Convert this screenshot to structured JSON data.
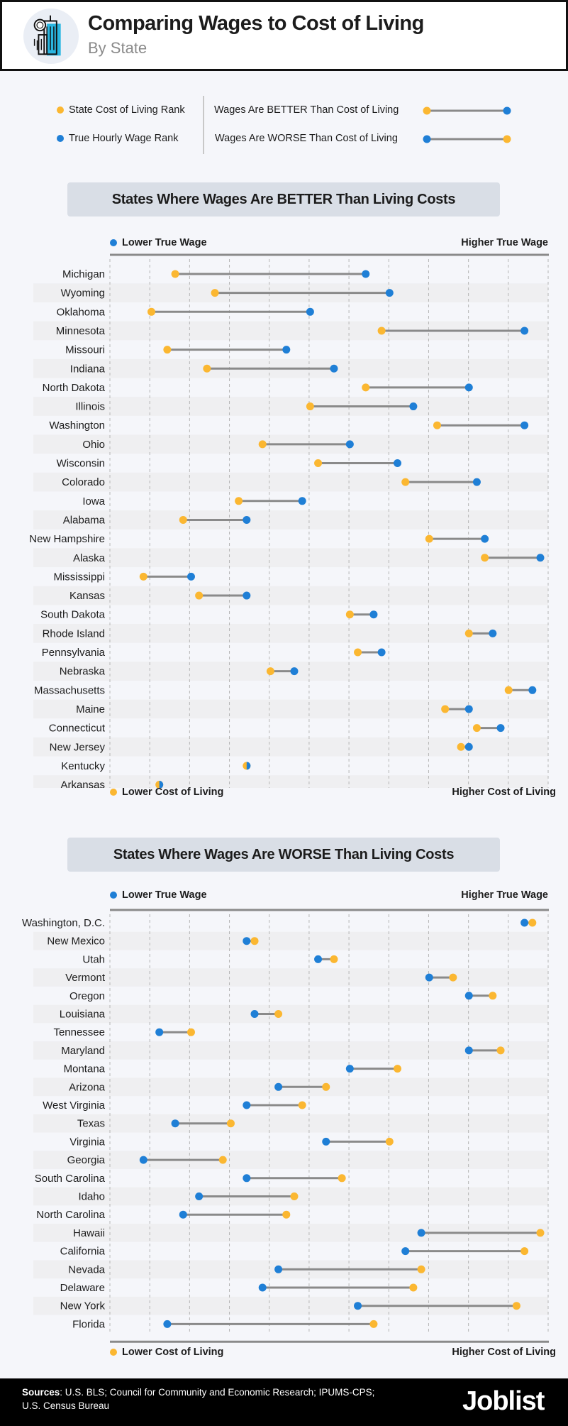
{
  "header": {
    "title": "Comparing Wages to Cost of Living",
    "subtitle": "By State",
    "icon": "city-buildings-coin-icon"
  },
  "legend": {
    "cost_rank": "State Cost of Living Rank",
    "wage_rank": "True Hourly Wage Rank",
    "better": "Wages Are BETTER Than Cost of Living",
    "worse": "Wages Are WORSE Than Cost of Living"
  },
  "colors": {
    "cost": "#fbb731",
    "wage": "#1f7fd6",
    "connector": "#8a8a8a",
    "band": "#efeff1"
  },
  "axis_labels": {
    "lower_wage": "Lower True Wage",
    "higher_wage": "Higher True Wage",
    "lower_cost": "Lower Cost of Living",
    "higher_cost": "Higher Cost of Living"
  },
  "chart_data": [
    {
      "type": "scatter",
      "style": "dumbbell",
      "title": "States Where Wages Are BETTER Than Living Costs",
      "xlabel_top": [
        "Lower True Wage",
        "Higher True Wage"
      ],
      "xlabel_bottom": [
        "Lower Cost of Living",
        "Higher Cost of Living"
      ],
      "xlim": [
        1,
        51
      ],
      "grid": true,
      "categories": [
        "Michigan",
        "Wyoming",
        "Oklahoma",
        "Minnesota",
        "Missouri",
        "Indiana",
        "North Dakota",
        "Illinois",
        "Washington",
        "Ohio",
        "Wisconsin",
        "Colorado",
        "Iowa",
        "Alabama",
        "New Hampshire",
        "Alaska",
        "Mississippi",
        "Kansas",
        "South Dakota",
        "Rhode Island",
        "Pennsylvania",
        "Nebraska",
        "Massachusetts",
        "Maine",
        "Connecticut",
        "New Jersey",
        "Kentucky",
        "Arkansas"
      ],
      "series": [
        {
          "name": "State Cost of Living Rank",
          "values": [
            5,
            10,
            2,
            31,
            4,
            9,
            29,
            22,
            38,
            16,
            23,
            34,
            13,
            6,
            37,
            44,
            1,
            8,
            27,
            42,
            28,
            17,
            47,
            39,
            43,
            41,
            14,
            3
          ]
        },
        {
          "name": "True Hourly Wage Rank",
          "values": [
            29,
            32,
            22,
            49,
            19,
            25,
            42,
            35,
            49,
            27,
            33,
            43,
            21,
            14,
            44,
            51,
            7,
            14,
            30,
            45,
            31,
            20,
            50,
            42,
            46,
            42,
            14,
            3
          ]
        }
      ]
    },
    {
      "type": "scatter",
      "style": "dumbbell",
      "title": "States Where Wages Are WORSE Than Living Costs",
      "xlabel_top": [
        "Lower True Wage",
        "Higher True Wage"
      ],
      "xlabel_bottom": [
        "Lower Cost of Living",
        "Higher Cost of Living"
      ],
      "xlim": [
        1,
        51
      ],
      "grid": true,
      "categories": [
        "Washington, D.C.",
        "New Mexico",
        "Utah",
        "Vermont",
        "Oregon",
        "Louisiana",
        "Tennessee",
        "Maryland",
        "Montana",
        "Arizona",
        "West Virginia",
        "Texas",
        "Virginia",
        "Georgia",
        "South Carolina",
        "Idaho",
        "North Carolina",
        "Hawaii",
        "California",
        "Nevada",
        "Delaware",
        "New York",
        "Florida"
      ],
      "series": [
        {
          "name": "State Cost of Living Rank",
          "values": [
            50,
            15,
            25,
            40,
            45,
            18,
            7,
            46,
            33,
            24,
            21,
            12,
            32,
            11,
            26,
            20,
            19,
            51,
            49,
            36,
            35,
            48,
            30
          ]
        },
        {
          "name": "True Hourly Wage Rank",
          "values": [
            49,
            14,
            23,
            37,
            42,
            15,
            3,
            42,
            27,
            18,
            14,
            5,
            24,
            1,
            14,
            8,
            6,
            36,
            34,
            18,
            16,
            28,
            4
          ]
        }
      ]
    }
  ],
  "footer": {
    "sources_label": "Sources",
    "sources_text": ": U.S. BLS; Council for Community and Economic Research; IPUMS-CPS; U.S. Census Bureau",
    "logo": "Joblist"
  }
}
